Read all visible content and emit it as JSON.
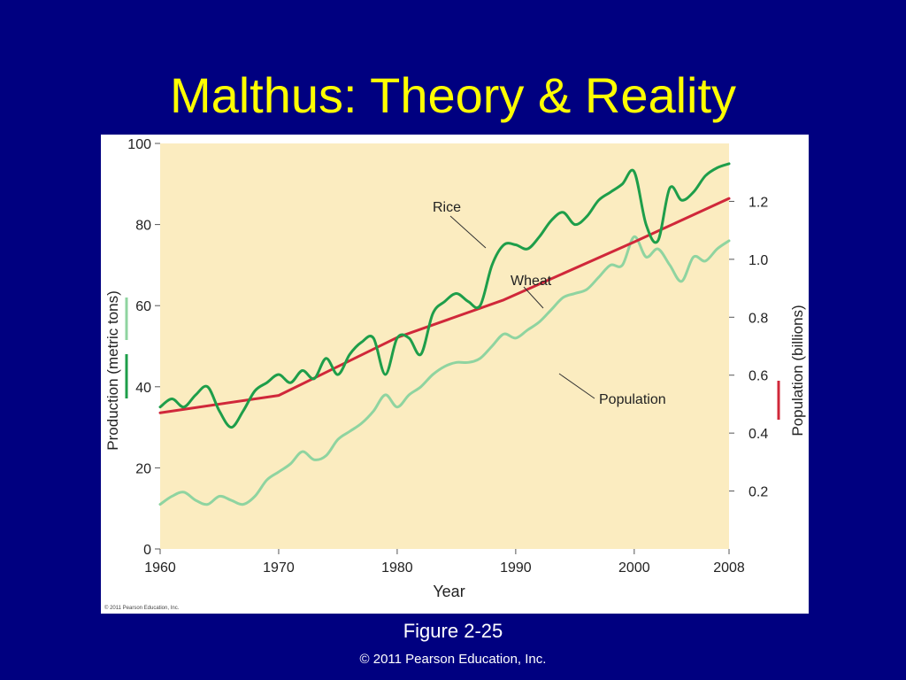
{
  "slide": {
    "title": "Malthus: Theory & Reality",
    "caption": "Figure 2-25",
    "copyright": "© 2011 Pearson Education, Inc."
  },
  "colors": {
    "background": "#000080",
    "title": "#ffff00",
    "plot_bg": "#fbecc0",
    "rice": "#1e9e4a",
    "wheat": "#8fd4a0",
    "population": "#d0283a"
  },
  "chart_data": {
    "type": "line",
    "credit": "© 2011 Pearson Education, Inc.",
    "xlabel": "Year",
    "xlim": [
      1960,
      2008
    ],
    "xticks": [
      1960,
      1970,
      1980,
      1990,
      2000,
      2008
    ],
    "ylabel_left": "Production (metric tons)",
    "ylim_left": [
      0,
      100
    ],
    "yticks_left": [
      0,
      20,
      40,
      60,
      80,
      100
    ],
    "ylabel_right": "Population (billions)",
    "ylim_right": [
      0,
      1.4
    ],
    "yticks_right": [
      "0.2",
      "0.4",
      "0.6",
      "0.8",
      "1.0",
      "1.2"
    ],
    "grid": false,
    "series": [
      {
        "name": "Rice",
        "axis": "left",
        "x": [
          1960,
          1961,
          1962,
          1963,
          1964,
          1965,
          1966,
          1967,
          1968,
          1969,
          1970,
          1971,
          1972,
          1973,
          1974,
          1975,
          1976,
          1977,
          1978,
          1979,
          1980,
          1981,
          1982,
          1983,
          1984,
          1985,
          1986,
          1987,
          1988,
          1989,
          1990,
          1991,
          1992,
          1993,
          1994,
          1995,
          1996,
          1997,
          1998,
          1999,
          2000,
          2001,
          2002,
          2003,
          2004,
          2005,
          2006,
          2007,
          2008
        ],
        "values": [
          35,
          37,
          35,
          38,
          40,
          34,
          30,
          34,
          39,
          41,
          43,
          41,
          44,
          42,
          47,
          43,
          48,
          51,
          52,
          43,
          52,
          52,
          48,
          58,
          61,
          63,
          61,
          60,
          70,
          75,
          75,
          74,
          77,
          81,
          83,
          80,
          82,
          86,
          88,
          90,
          93,
          80,
          76,
          89,
          86,
          88,
          92,
          94,
          95
        ]
      },
      {
        "name": "Wheat",
        "axis": "left",
        "x": [
          1960,
          1961,
          1962,
          1963,
          1964,
          1965,
          1966,
          1967,
          1968,
          1969,
          1970,
          1971,
          1972,
          1973,
          1974,
          1975,
          1976,
          1977,
          1978,
          1979,
          1980,
          1981,
          1982,
          1983,
          1984,
          1985,
          1986,
          1987,
          1988,
          1989,
          1990,
          1991,
          1992,
          1993,
          1994,
          1995,
          1996,
          1997,
          1998,
          1999,
          2000,
          2001,
          2002,
          2003,
          2004,
          2005,
          2006,
          2007,
          2008
        ],
        "values": [
          11,
          13,
          14,
          12,
          11,
          13,
          12,
          11,
          13,
          17,
          19,
          21,
          24,
          22,
          23,
          27,
          29,
          31,
          34,
          38,
          35,
          38,
          40,
          43,
          45,
          46,
          46,
          47,
          50,
          53,
          52,
          54,
          56,
          59,
          62,
          63,
          64,
          67,
          70,
          70,
          77,
          72,
          74,
          70,
          66,
          72,
          71,
          74,
          76
        ]
      },
      {
        "name": "Population",
        "axis": "right",
        "x": [
          1960,
          1970,
          1980,
          1989,
          2000,
          2008
        ],
        "values": [
          0.47,
          0.53,
          0.73,
          0.86,
          1.06,
          1.21
        ]
      }
    ]
  }
}
